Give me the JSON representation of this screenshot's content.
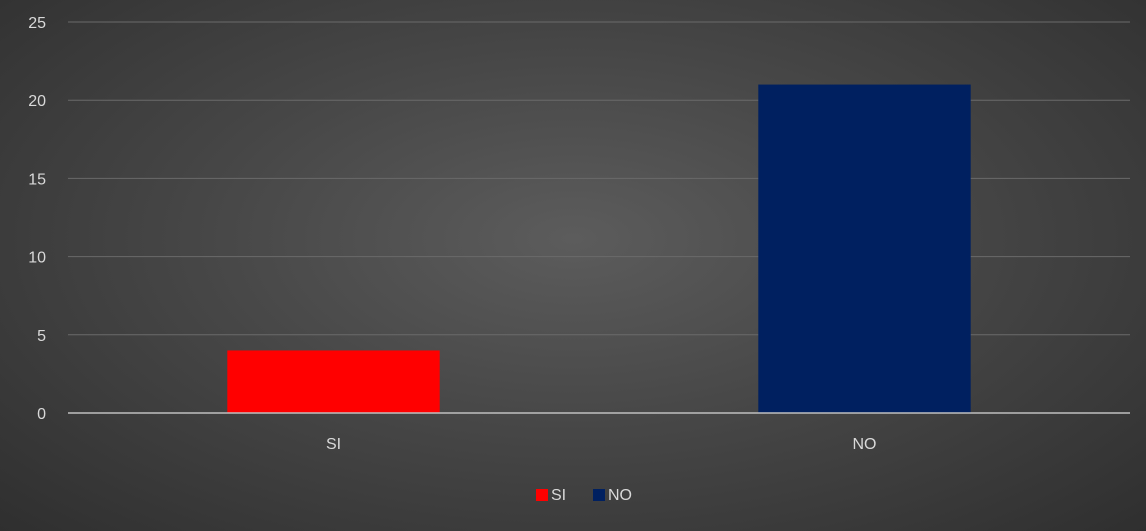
{
  "chart_data": {
    "type": "bar",
    "categories": [
      "SI",
      "NO"
    ],
    "values": [
      4,
      21
    ],
    "colors": [
      "#ff0000",
      "#002060"
    ],
    "title": "",
    "xlabel": "",
    "ylabel": "",
    "ylim": [
      0,
      25
    ],
    "yticks": [
      0,
      5,
      10,
      15,
      20,
      25
    ],
    "grid": true,
    "legend": {
      "position": "bottom",
      "entries": [
        {
          "label": "SI",
          "color": "#ff0000"
        },
        {
          "label": "NO",
          "color": "#002060"
        }
      ]
    }
  }
}
